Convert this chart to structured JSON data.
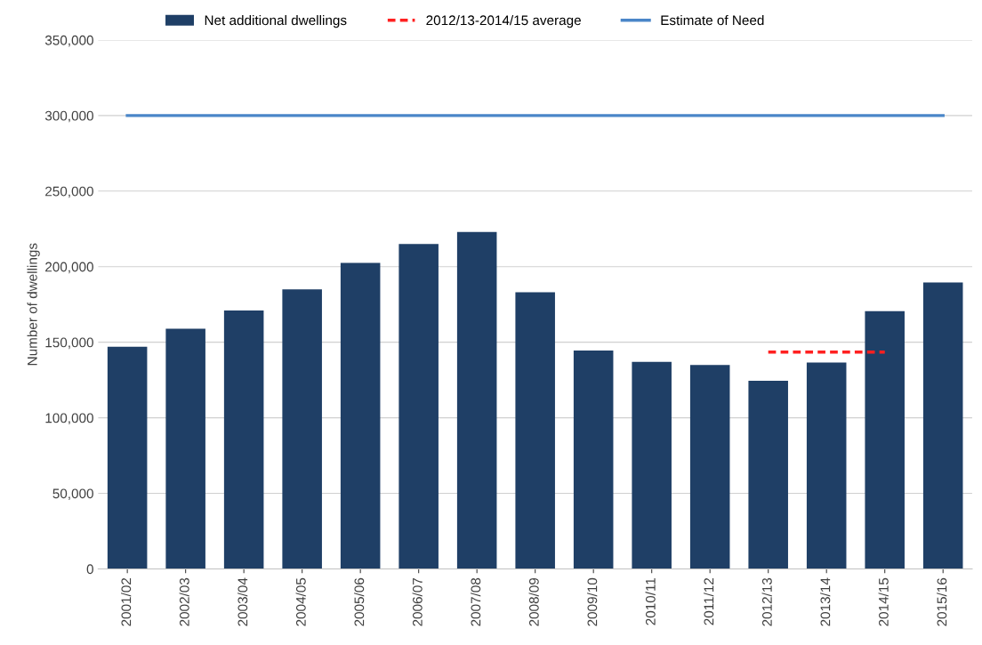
{
  "chart_data": {
    "type": "bar",
    "ylabel": "Number of dwellings",
    "categories": [
      "2001/02",
      "2002/03",
      "2003/04",
      "2004/05",
      "2005/06",
      "2006/07",
      "2007/08",
      "2008/09",
      "2009/10",
      "2010/11",
      "2011/12",
      "2012/13",
      "2013/14",
      "2014/15",
      "2015/16"
    ],
    "series": [
      {
        "name": "Net additional dwellings",
        "color": "#1f3f66",
        "values": [
          147000,
          159000,
          171000,
          185000,
          202500,
          215000,
          223000,
          183000,
          144500,
          137000,
          135000,
          124500,
          136500,
          170500,
          189500
        ]
      },
      {
        "name": "2012/13-2014/15 average",
        "type": "line",
        "line_style": "dashed",
        "color": "#ff2020",
        "values": [
          null,
          null,
          null,
          null,
          null,
          null,
          null,
          null,
          null,
          null,
          null,
          143500,
          143500,
          143500,
          null
        ]
      },
      {
        "name": "Estimate of Need",
        "type": "line",
        "line_style": "solid",
        "color": "#4a86c8",
        "values": [
          300000,
          300000,
          300000,
          300000,
          300000,
          300000,
          300000,
          300000,
          300000,
          300000,
          300000,
          300000,
          300000,
          300000,
          300000
        ]
      }
    ],
    "ylim": [
      0,
      350000
    ],
    "yticks": [
      {
        "value": 0,
        "label": "0"
      },
      {
        "value": 50000,
        "label": "50,000"
      },
      {
        "value": 100000,
        "label": "100,000"
      },
      {
        "value": 150000,
        "label": "150,000"
      },
      {
        "value": 200000,
        "label": "200,000"
      },
      {
        "value": 250000,
        "label": "250,000"
      },
      {
        "value": 300000,
        "label": "300,000"
      },
      {
        "value": 350000,
        "label": "350,000"
      }
    ],
    "grid": "y",
    "legend": "top"
  }
}
